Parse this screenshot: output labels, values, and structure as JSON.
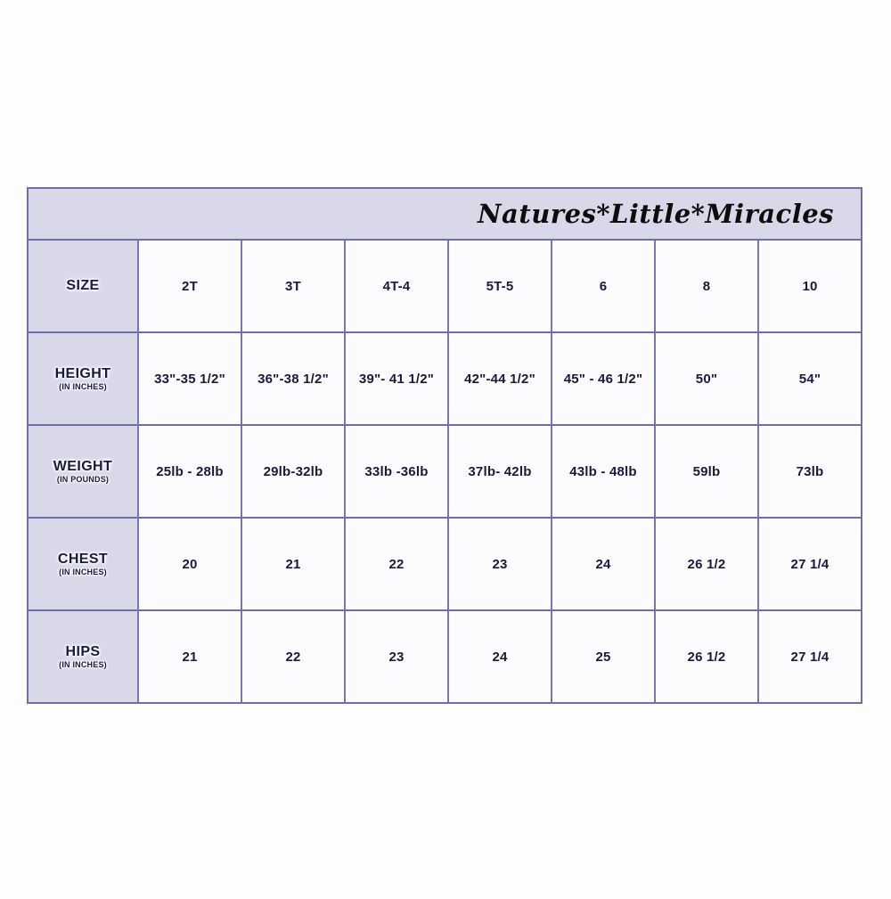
{
  "banner": {
    "brand": "Natures*Little*Miracles"
  },
  "colors": {
    "page_background": "#fdfdfd",
    "banner_background": "#d8d8e9",
    "label_cell_background": "#d8d8e9",
    "data_cell_background": "#fcfcfe",
    "grid_border": "#6f6fa6",
    "text_navy": "#1a1a40",
    "brand_text": "#0d0d0d"
  },
  "table": {
    "rows": [
      {
        "label": "SIZE",
        "sublabel": "",
        "values": [
          "2T",
          "3T",
          "4T-4",
          "5T-5",
          "6",
          "8",
          "10"
        ]
      },
      {
        "label": "HEIGHT",
        "sublabel": "(IN INCHES)",
        "values": [
          "33\"-35 1/2\"",
          "36\"-38 1/2\"",
          "39\"- 41 1/2\"",
          "42\"-44 1/2\"",
          "45\" - 46 1/2\"",
          "50\"",
          "54\""
        ]
      },
      {
        "label": "WEIGHT",
        "sublabel": "(IN POUNDS)",
        "values": [
          "25lb - 28lb",
          "29lb-32lb",
          "33lb -36lb",
          "37lb- 42lb",
          "43lb  - 48lb",
          "59lb",
          "73lb"
        ]
      },
      {
        "label": "CHEST",
        "sublabel": "(IN INCHES)",
        "values": [
          "20",
          "21",
          "22",
          "23",
          "24",
          "26 1/2",
          "27 1/4"
        ]
      },
      {
        "label": "HIPS",
        "sublabel": "(IN INCHES)",
        "values": [
          "21",
          "22",
          "23",
          "24",
          "25",
          "26 1/2",
          "27 1/4"
        ]
      }
    ]
  }
}
